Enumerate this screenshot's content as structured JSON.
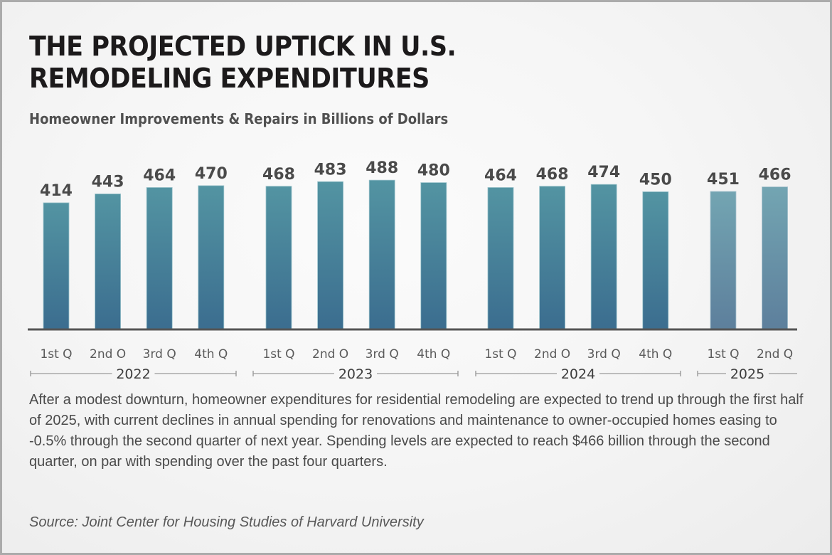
{
  "title_line1": "THE PROJECTED UPTICK IN U.S.",
  "title_line2": "REMODELING EXPENDITURES",
  "caption": "After a modest downturn, homeowner expenditures for residential remodeling are expected to trend up through the first half of 2025, with current declines in annual spending for renovations and maintenance to owner-occupied homes easing to -0.5% through the second quarter of next year. Spending levels are expected to reach $466 billion through the second quarter, on par with spending over the past four quarters.",
  "source": "Source: Joint Center for Housing Studies of Harvard University",
  "colors": {
    "bar_top": "#5394a2",
    "bar_bottom": "#3b6d8f",
    "projected_top": "#73a5b2",
    "projected_bottom": "#5d7f9c",
    "axis": "#555555"
  },
  "chart_data": {
    "type": "bar",
    "title": "THE PROJECTED UPTICK IN U.S. REMODELING EXPENDITURES",
    "subtitle": "Homeowner Improvements & Repairs in Billions of Dollars",
    "xlabel": "",
    "ylabel": "",
    "ylim": [
      0,
      500
    ],
    "grid": false,
    "legend": "none",
    "groups": [
      {
        "year": "2022",
        "categories": [
          "1st Q",
          "2nd O",
          "3rd Q",
          "4th Q"
        ],
        "values": [
          414,
          443,
          464,
          470
        ],
        "projected": false,
        "bracket_right_tick": true
      },
      {
        "year": "2023",
        "categories": [
          "1st Q",
          "2nd O",
          "3rd Q",
          "4th Q"
        ],
        "values": [
          468,
          483,
          488,
          480
        ],
        "projected": false,
        "bracket_right_tick": true
      },
      {
        "year": "2024",
        "categories": [
          "1st Q",
          "2nd O",
          "3rd Q",
          "4th Q"
        ],
        "values": [
          464,
          468,
          474,
          450
        ],
        "projected": false,
        "bracket_right_tick": true
      },
      {
        "year": "2025",
        "categories": [
          "1st Q",
          "2nd Q"
        ],
        "values": [
          451,
          466
        ],
        "projected": true,
        "bracket_right_tick": false
      }
    ]
  }
}
